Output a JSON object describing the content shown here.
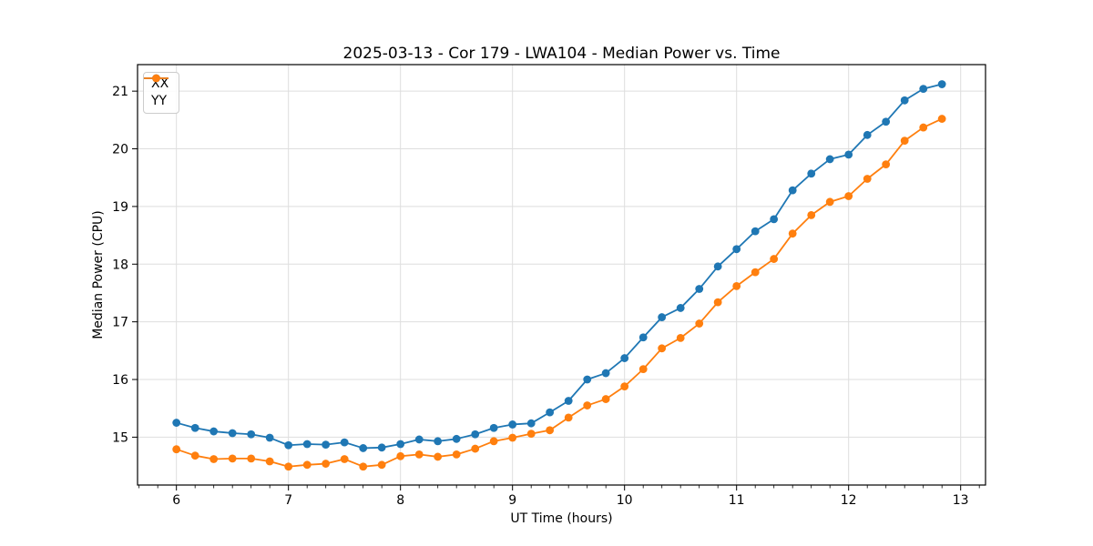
{
  "chart_data": {
    "type": "line",
    "title": "2025-03-13 - Cor 179 - LWA104 - Median Power vs. Time",
    "xlabel": "UT Time (hours)",
    "ylabel": "Median Power (CPU)",
    "xlim": [
      5.653,
      13.222
    ],
    "ylim": [
      14.17,
      21.46
    ],
    "x_ticks": [
      6,
      7,
      8,
      9,
      10,
      11,
      12,
      13
    ],
    "y_ticks": [
      15,
      16,
      17,
      18,
      19,
      20,
      21
    ],
    "x_minor_interval_hours": 0.1667,
    "grid": true,
    "grid_color": "#dedede",
    "legend_position": "upper-left",
    "x": [
      6.0,
      6.167,
      6.333,
      6.5,
      6.667,
      6.833,
      7.0,
      7.167,
      7.333,
      7.5,
      7.667,
      7.833,
      8.0,
      8.167,
      8.333,
      8.5,
      8.667,
      8.833,
      9.0,
      9.167,
      9.333,
      9.5,
      9.667,
      9.833,
      10.0,
      10.167,
      10.333,
      10.5,
      10.667,
      10.833,
      11.0,
      11.167,
      11.333,
      11.5,
      11.667,
      11.833,
      12.0,
      12.167,
      12.333,
      12.5,
      12.667,
      12.833
    ],
    "series": [
      {
        "name": "XX",
        "color": "#1f77b4",
        "values": [
          15.25,
          15.16,
          15.1,
          15.07,
          15.05,
          14.99,
          14.86,
          14.88,
          14.87,
          14.91,
          14.81,
          14.82,
          14.88,
          14.96,
          14.93,
          14.97,
          15.05,
          15.16,
          15.22,
          15.24,
          15.43,
          15.63,
          16.0,
          16.11,
          16.37,
          16.73,
          17.08,
          17.24,
          17.57,
          17.96,
          18.26,
          18.57,
          18.78,
          19.28,
          19.57,
          19.82,
          19.9,
          20.24,
          20.47,
          20.84,
          21.04,
          21.12
        ]
      },
      {
        "name": "YY",
        "color": "#ff7f0e",
        "values": [
          14.79,
          14.68,
          14.62,
          14.63,
          14.63,
          14.58,
          14.49,
          14.52,
          14.54,
          14.62,
          14.49,
          14.52,
          14.67,
          14.7,
          14.66,
          14.7,
          14.8,
          14.93,
          14.99,
          15.06,
          15.12,
          15.34,
          15.55,
          15.66,
          15.88,
          16.18,
          16.54,
          16.72,
          16.97,
          17.34,
          17.62,
          17.86,
          18.09,
          18.53,
          18.85,
          19.08,
          19.18,
          19.48,
          19.73,
          20.14,
          20.37,
          20.52
        ]
      }
    ]
  }
}
